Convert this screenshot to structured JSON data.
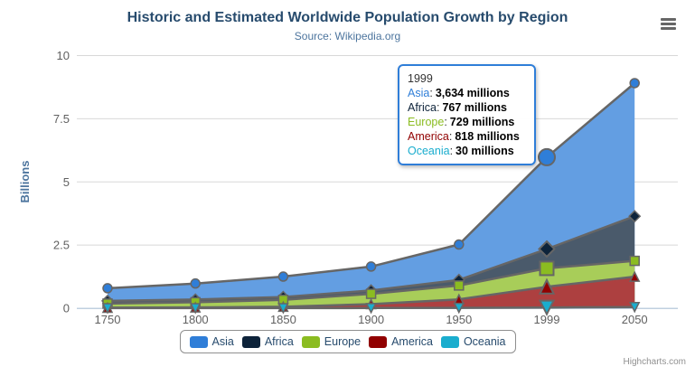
{
  "chart_data": {
    "type": "area",
    "stacking": "normal",
    "title": "Historic and Estimated Worldwide Population Growth by Region",
    "subtitle": "Source: Wikipedia.org",
    "ylabel": "Billions",
    "xlabel": "",
    "values_unit": "millions",
    "categories": [
      "1750",
      "1800",
      "1850",
      "1900",
      "1950",
      "1999",
      "2050"
    ],
    "yticks": [
      0,
      2.5,
      5,
      7.5,
      10
    ],
    "ylim": [
      0,
      10
    ],
    "grid": true,
    "legend_position": "bottom",
    "hover_category": "1999",
    "series": [
      {
        "name": "Asia",
        "color": "#2f7ed8",
        "marker": "circle",
        "values": [
          502,
          635,
          809,
          947,
          1402,
          3634,
          5268
        ]
      },
      {
        "name": "Africa",
        "color": "#0d233a",
        "marker": "diamond",
        "values": [
          106,
          107,
          111,
          133,
          221,
          767,
          1766
        ]
      },
      {
        "name": "Europe",
        "color": "#8bbc21",
        "marker": "square",
        "values": [
          163,
          203,
          276,
          408,
          547,
          729,
          628
        ]
      },
      {
        "name": "America",
        "color": "#910000",
        "marker": "triangle",
        "values": [
          18,
          31,
          54,
          156,
          339,
          818,
          1201
        ]
      },
      {
        "name": "Oceania",
        "color": "#1aadce",
        "marker": "triangle-down",
        "values": [
          2,
          2,
          2,
          6,
          13,
          30,
          46
        ]
      }
    ]
  },
  "tooltip": {
    "header": "1999",
    "colon": ":",
    "rows": [
      {
        "name": "Asia",
        "color": "#2f7ed8",
        "value": "3,634 millions"
      },
      {
        "name": "Africa",
        "color": "#0d233a",
        "value": "767 millions"
      },
      {
        "name": "Europe",
        "color": "#8bbc21",
        "value": "729 millions"
      },
      {
        "name": "America",
        "color": "#910000",
        "value": "818 millions"
      },
      {
        "name": "Oceania",
        "color": "#1aadce",
        "value": "30 millions"
      }
    ]
  },
  "credits": "Highcharts.com",
  "colors": {
    "title": "#274b6d",
    "subtitle": "#4d759e",
    "axis_label": "#606060",
    "axis_title": "#4d759e",
    "grid": "#d8d8d8",
    "axis_line": "#c0d0e0",
    "series_line": "#666666",
    "legend_text": "#274b6d",
    "tooltip_border": "#2f7ed8",
    "menu_icon": "#666666",
    "area_fill_opacity": 0.75
  }
}
